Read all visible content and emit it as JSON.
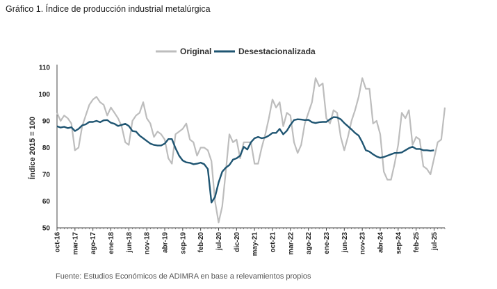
{
  "title": "Gráfico 1. Índice de producción industrial metalúrgica",
  "source": "Fuente: Estudios Económicos de ADIMRA en base a relevamientos propios",
  "colors": {
    "original": "#bdbdbd",
    "desest": "#1f5572",
    "axis": "#444444"
  },
  "chart_data": {
    "type": "line",
    "ylabel": "Índice 2015 = 100",
    "ylim": [
      50,
      110
    ],
    "yticks": [
      50,
      60,
      70,
      80,
      90,
      100,
      110
    ],
    "grid": false,
    "legend": "top-center",
    "x_start": "oct-16",
    "x_tick_labels": [
      "oct-16",
      "mar-17",
      "ago-17",
      "ene-18",
      "jun-18",
      "nov-18",
      "abr-19",
      "sep-19",
      "feb-20",
      "jul-20",
      "dic-20",
      "may-21",
      "oct-21",
      "mar-22",
      "ago-22",
      "ene-23",
      "jun-23",
      "nov-23",
      "abr-24",
      "sep-24",
      "feb-25",
      "jul-25"
    ],
    "series": [
      {
        "name": "Original",
        "values": [
          93,
          90,
          92,
          91,
          89,
          79,
          80,
          88,
          92,
          96,
          98,
          99,
          97,
          96,
          92,
          95,
          93,
          91,
          88,
          82,
          81,
          90,
          92,
          93,
          97,
          91,
          89,
          84,
          86,
          85,
          83,
          76,
          74,
          85,
          86,
          87,
          89,
          83,
          82,
          77,
          80,
          80,
          79,
          75,
          60,
          52,
          58,
          71,
          85,
          82,
          83,
          76,
          82,
          82,
          82,
          74,
          74,
          80,
          85,
          91,
          98,
          95,
          97,
          88,
          93,
          92,
          82,
          78,
          81,
          89,
          93,
          97,
          106,
          103,
          104,
          91,
          89,
          94,
          93,
          84,
          79,
          84,
          90,
          94,
          99,
          106,
          102,
          102,
          89,
          90,
          85,
          71,
          68,
          68,
          74,
          81,
          93,
          91,
          94,
          81,
          84,
          83,
          73,
          72,
          70,
          76,
          82,
          83,
          95
        ]
      },
      {
        "name": "Desestacionalizada",
        "values": [
          88,
          87.5,
          87.8,
          87.3,
          87.6,
          86.2,
          87,
          88.3,
          88.7,
          89.6,
          89.6,
          90,
          89.5,
          90.2,
          90.3,
          89.3,
          88.9,
          88.1,
          88.5,
          88.9,
          88.1,
          86.2,
          86,
          84.5,
          83.5,
          82.5,
          81.5,
          81,
          80.8,
          80.8,
          81.5,
          83.2,
          83.2,
          79.8,
          77,
          75.2,
          74.5,
          74.3,
          73.8,
          74,
          74.4,
          73.8,
          72,
          59.5,
          61.5,
          67,
          71,
          72.5,
          73.5,
          75.5,
          76,
          77,
          80.3,
          79.3,
          82,
          83.5,
          84,
          83.5,
          83.8,
          84.5,
          85.5,
          85.5,
          87,
          85,
          86.3,
          88.5,
          90.3,
          90.6,
          90.5,
          90.3,
          90.4,
          89.5,
          89.2,
          89.5,
          89.6,
          89.6,
          90.6,
          91.4,
          91.3,
          90.6,
          89.2,
          88,
          86.8,
          85.5,
          84.5,
          82,
          79,
          78.5,
          77.5,
          76.7,
          76.2,
          76.5,
          77,
          77.5,
          78,
          78,
          78.2,
          79,
          79.8,
          80.3,
          79.5,
          79.5,
          79,
          79,
          78.8,
          79
        ]
      }
    ]
  }
}
